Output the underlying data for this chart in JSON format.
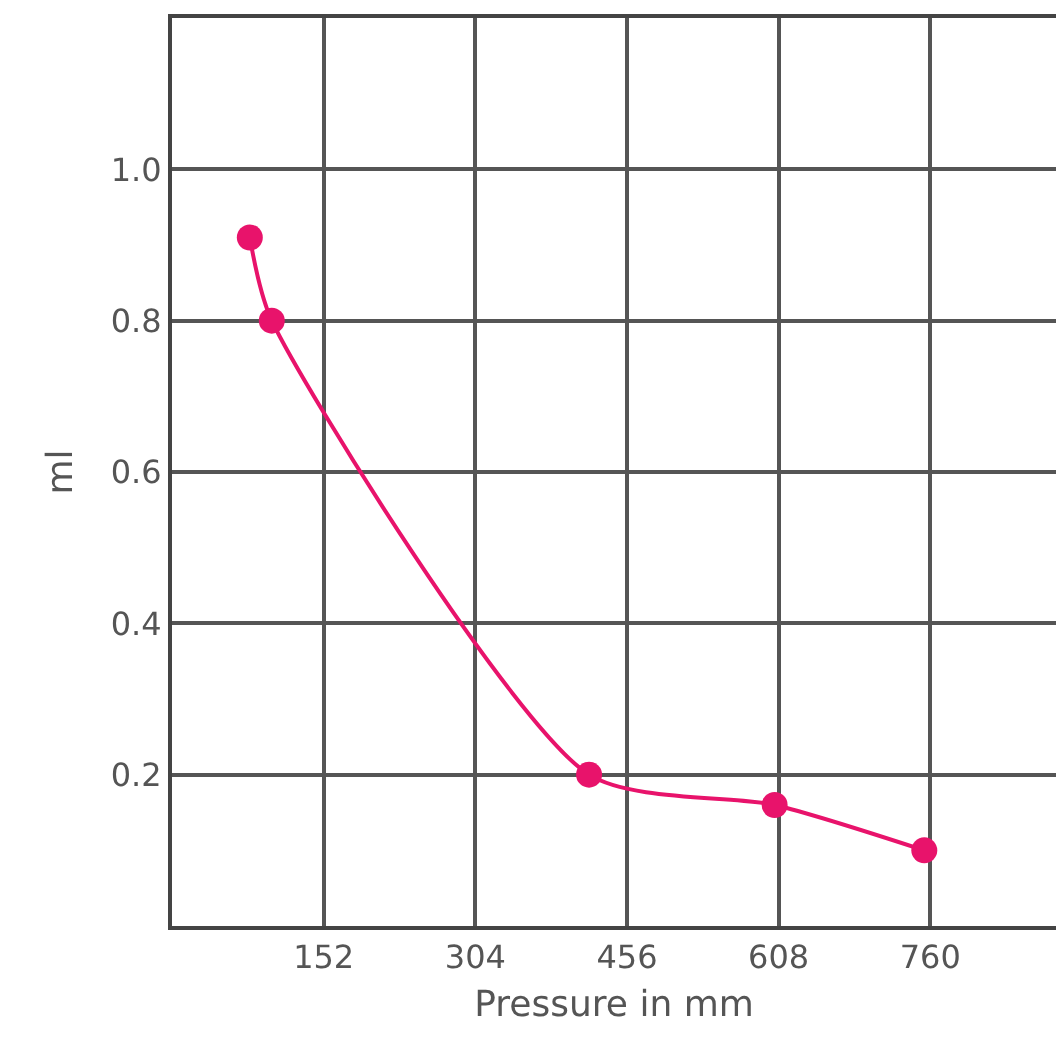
{
  "chart_data": {
    "type": "line",
    "xlabel": "Pressure in mm",
    "ylabel": "ml",
    "x": [
      78,
      100,
      418,
      604,
      754
    ],
    "series": [
      {
        "color": "#e8136b",
        "values": [
          0.91,
          0.8,
          0.2,
          0.16,
          0.1
        ]
      }
    ],
    "xlim": [
      0,
      886
    ],
    "ylim": [
      0,
      1.2
    ],
    "xticks": [
      152,
      304,
      456,
      608,
      760
    ],
    "yticks": [
      0.2,
      0.4,
      0.6,
      0.8,
      {
        "value": 1,
        "label": "1.0"
      }
    ],
    "grid": true,
    "marker": "circle",
    "line_style": "solid",
    "legend": false
  }
}
